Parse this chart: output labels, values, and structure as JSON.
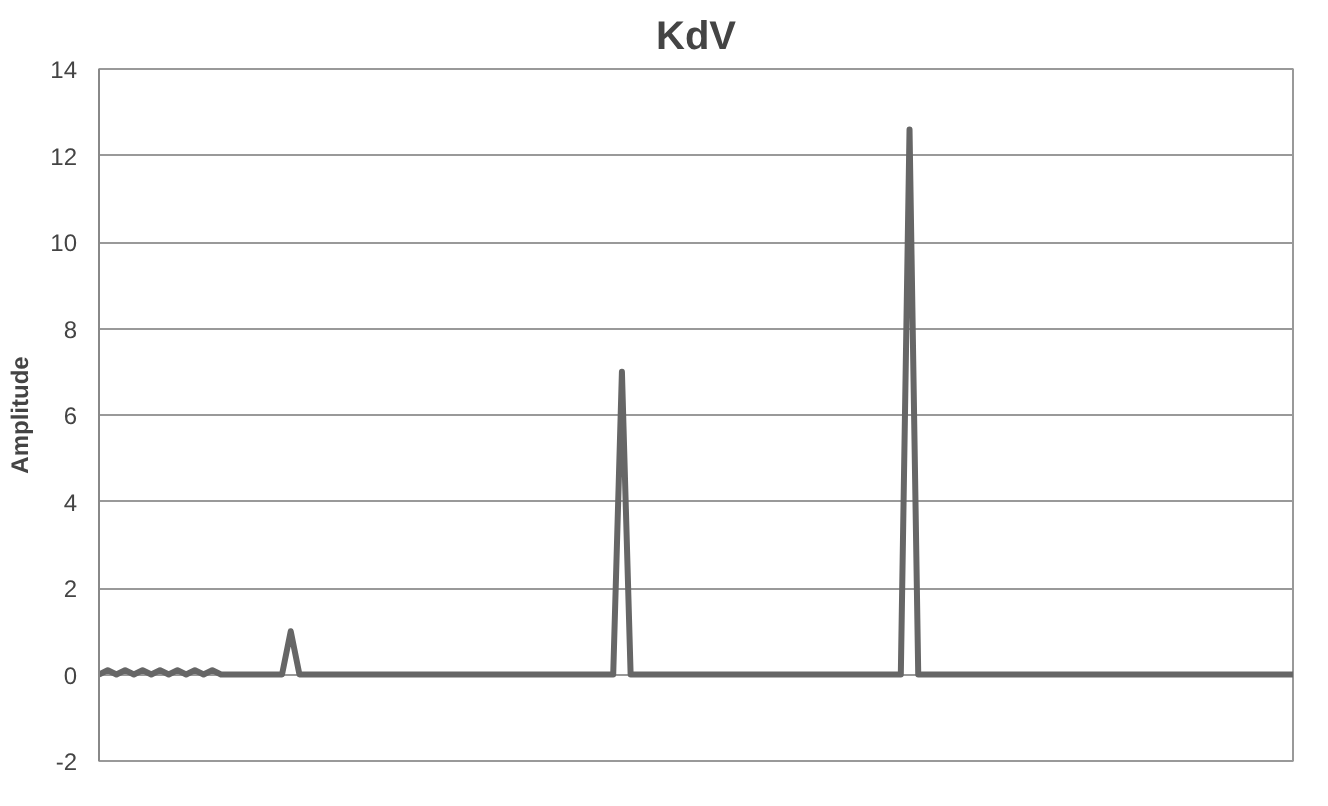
{
  "chart_data": {
    "type": "line",
    "title": "KdV",
    "ylabel": "Amplitude",
    "categories": [
      null,
      null,
      null,
      null,
      null,
      null,
      null,
      null,
      null,
      null,
      null,
      null,
      null,
      null,
      null,
      null,
      null,
      null,
      null,
      null,
      null,
      null,
      null,
      null,
      null,
      null,
      null,
      null,
      null,
      null,
      null,
      null,
      null,
      null,
      null,
      null,
      null,
      null,
      null,
      null,
      null,
      null,
      null,
      null,
      null,
      null,
      null,
      null,
      null,
      null,
      null,
      null,
      null,
      null,
      null,
      null,
      null,
      null,
      null,
      null,
      null,
      null,
      null,
      null,
      null,
      null,
      null,
      null,
      null,
      null,
      null,
      null,
      null,
      null,
      null,
      null,
      null,
      null,
      null,
      null,
      null,
      null,
      null,
      null,
      null,
      null,
      null,
      null,
      null,
      null,
      null,
      null,
      null,
      null,
      null,
      null,
      null,
      null,
      null,
      null,
      null,
      null,
      null,
      null,
      null,
      null,
      null,
      null,
      null,
      null,
      null,
      null,
      null,
      null,
      null,
      null,
      null,
      null,
      null,
      null,
      null,
      null,
      null,
      null,
      null,
      null,
      null,
      null,
      null,
      null,
      null,
      null,
      null,
      null,
      null,
      null,
      null,
      null
    ],
    "series": [
      {
        "color": "#666666",
        "values": [
          0,
          0.1,
          0,
          0.1,
          0,
          0.1,
          0,
          0.1,
          0,
          0.1,
          0,
          0.1,
          0,
          0.1,
          0,
          0,
          0,
          0,
          0,
          0,
          0,
          0,
          1.0,
          0,
          0,
          0,
          0,
          0,
          0,
          0,
          0,
          0,
          0,
          0,
          0,
          0,
          0,
          0,
          0,
          0,
          0,
          0,
          0,
          0,
          0,
          0,
          0,
          0,
          0,
          0,
          0,
          0,
          0,
          0,
          0,
          0,
          0,
          0,
          0,
          0,
          7.0,
          0,
          0,
          0,
          0,
          0,
          0,
          0,
          0,
          0,
          0,
          0,
          0,
          0,
          0,
          0,
          0,
          0,
          0,
          0,
          0,
          0,
          0,
          0,
          0,
          0,
          0,
          0,
          0,
          0,
          0,
          0,
          0,
          12.6,
          0,
          0,
          0,
          0,
          0,
          0,
          0,
          0,
          0,
          0,
          0,
          0,
          0,
          0,
          0,
          0,
          0,
          0,
          0,
          0,
          0,
          0,
          0,
          0,
          0,
          0,
          0,
          0,
          0,
          0,
          0,
          0,
          0,
          0,
          0,
          0,
          0,
          0,
          0,
          0,
          0,
          0,
          0,
          0
        ]
      }
    ],
    "ylim": [
      -2,
      14
    ],
    "yticks": [
      {
        "value": -2,
        "label": "-2"
      },
      0,
      2,
      4,
      6,
      8,
      10,
      12,
      14
    ],
    "grid": "y",
    "tick_labels": "y",
    "marker": "none",
    "line_style": "solid"
  }
}
